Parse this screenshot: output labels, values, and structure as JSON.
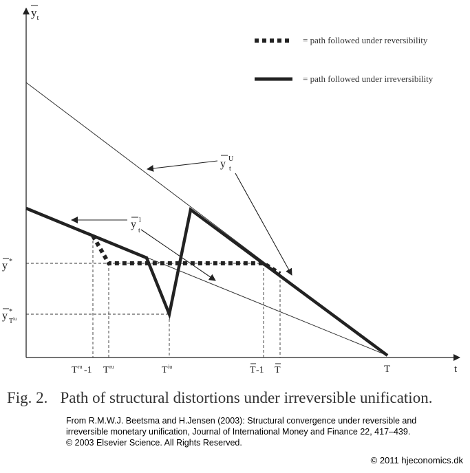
{
  "axes": {
    "y_label": "y",
    "y_label_sub": "t",
    "x_label": "t"
  },
  "legend": {
    "dotted_label": "= path followed under reversibility",
    "solid_label": "= path followed under irreversibility"
  },
  "curve_labels": {
    "upper": {
      "base": "y",
      "sup": "U",
      "sub": "t"
    },
    "lower": {
      "base": "y",
      "sup": "l",
      "sub": "t"
    }
  },
  "y_ticks": {
    "y_star": {
      "base": "y",
      "sup": "*"
    },
    "y_star_tiu": {
      "base": "y",
      "sup": "*",
      "sub": "T",
      "subsub": "iu"
    }
  },
  "x_ticks": [
    {
      "key": "tru_minus_1",
      "base": "T",
      "sup": "ru",
      "suffix": "-1"
    },
    {
      "key": "tru",
      "base": "T",
      "sup": "ru",
      "suffix": ""
    },
    {
      "key": "tiu",
      "base": "T",
      "sup": "iu",
      "suffix": ""
    },
    {
      "key": "tbar_minus_1",
      "base": "T",
      "sup": "",
      "suffix": "-1"
    },
    {
      "key": "tbar",
      "base": "T",
      "sup": "",
      "suffix": ""
    },
    {
      "key": "T",
      "base": "T",
      "sup": "",
      "suffix": ""
    }
  ],
  "caption": {
    "number": "Fig. 2.",
    "text": "Path of structural distortions under irreversible unification."
  },
  "source": {
    "line1": "From R.M.W.J. Beetsma and H.Jensen (2003): Structural convergence under reversible and",
    "line2": "irreversible monetary unification, Journal of International Money and Finance 22, 417–439.",
    "line3": "© 2003 Elsevier Science. All Rights Reserved."
  },
  "copyright": "© 2011 hjeconomics.dk"
}
